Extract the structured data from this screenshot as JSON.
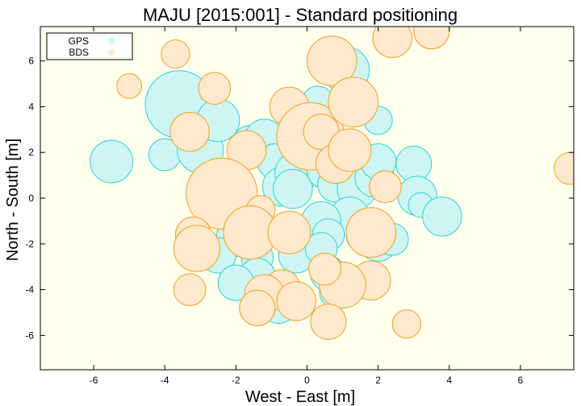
{
  "chart_data": {
    "type": "scatter",
    "title": "MAJU [2015:001] - Standard positioning",
    "xlabel": "West - East [m]",
    "ylabel": "North - South [m]",
    "xlim": [
      -7.5,
      7.5
    ],
    "ylim": [
      -7.5,
      7.5
    ],
    "xticks": [
      -6,
      -4,
      -2,
      0,
      2,
      4,
      6
    ],
    "yticks": [
      -6,
      -4,
      -2,
      0,
      2,
      4,
      6
    ],
    "grid": false,
    "legend_position": "top-left",
    "colors": {
      "background": "#ffffee",
      "gps_fill": "#cef5f3",
      "gps_stroke": "#2fd0d6",
      "bds_fill": "#ffe9cc",
      "bds_stroke": "#f0a020"
    },
    "series": [
      {
        "name": "GPS",
        "points": [
          {
            "x": -5.5,
            "y": 1.6,
            "r": 0.6
          },
          {
            "x": -4.0,
            "y": 1.9,
            "r": 0.45
          },
          {
            "x": -3.6,
            "y": 4.1,
            "r": 0.95
          },
          {
            "x": -3.0,
            "y": 2.1,
            "r": 0.65
          },
          {
            "x": -2.5,
            "y": 3.4,
            "r": 0.6
          },
          {
            "x": -1.6,
            "y": 2.4,
            "r": 0.5
          },
          {
            "x": -1.2,
            "y": 2.6,
            "r": 0.55
          },
          {
            "x": -0.9,
            "y": 1.6,
            "r": 0.5
          },
          {
            "x": -0.7,
            "y": 0.5,
            "r": 0.55
          },
          {
            "x": -0.3,
            "y": 1.1,
            "r": 0.6
          },
          {
            "x": -0.4,
            "y": 0.4,
            "r": 0.55
          },
          {
            "x": 0.3,
            "y": 4.2,
            "r": 0.45
          },
          {
            "x": 1.1,
            "y": 5.6,
            "r": 0.65
          },
          {
            "x": 0.5,
            "y": 1.2,
            "r": 0.5
          },
          {
            "x": 0.8,
            "y": 0.6,
            "r": 0.5
          },
          {
            "x": 1.4,
            "y": 0.4,
            "r": 0.55
          },
          {
            "x": 1.2,
            "y": -0.8,
            "r": 0.55
          },
          {
            "x": 0.4,
            "y": -1.0,
            "r": 0.55
          },
          {
            "x": -0.3,
            "y": -2.5,
            "r": 0.5
          },
          {
            "x": 0.6,
            "y": -1.6,
            "r": 0.45
          },
          {
            "x": 0.4,
            "y": -2.2,
            "r": 0.45
          },
          {
            "x": 1.6,
            "y": -1.6,
            "r": 0.5
          },
          {
            "x": 2.0,
            "y": -1.9,
            "r": 0.55
          },
          {
            "x": 2.4,
            "y": -1.8,
            "r": 0.45
          },
          {
            "x": 1.9,
            "y": 0.9,
            "r": 0.55
          },
          {
            "x": 2.0,
            "y": 1.6,
            "r": 0.5
          },
          {
            "x": 2.0,
            "y": 3.4,
            "r": 0.4
          },
          {
            "x": 3.0,
            "y": 1.5,
            "r": 0.5
          },
          {
            "x": 3.1,
            "y": 0.1,
            "r": 0.55
          },
          {
            "x": 3.2,
            "y": -0.3,
            "r": 0.35
          },
          {
            "x": 3.8,
            "y": -0.8,
            "r": 0.55
          },
          {
            "x": -2.0,
            "y": -1.7,
            "r": 0.55
          },
          {
            "x": -2.5,
            "y": -2.5,
            "r": 0.5
          },
          {
            "x": -1.4,
            "y": -2.6,
            "r": 0.45
          },
          {
            "x": -1.4,
            "y": -3.4,
            "r": 0.5
          },
          {
            "x": -2.0,
            "y": -3.7,
            "r": 0.5
          },
          {
            "x": -1.1,
            "y": -4.2,
            "r": 0.45
          },
          {
            "x": -0.8,
            "y": -4.7,
            "r": 0.5
          },
          {
            "x": 0.6,
            "y": -3.3,
            "r": 0.5
          },
          {
            "x": 0.8,
            "y": -4.1,
            "r": 0.45
          }
        ]
      },
      {
        "name": "BDS",
        "points": [
          {
            "x": -3.7,
            "y": 6.3,
            "r": 0.4
          },
          {
            "x": -5.0,
            "y": 4.9,
            "r": 0.35
          },
          {
            "x": -2.6,
            "y": 4.8,
            "r": 0.45
          },
          {
            "x": -3.3,
            "y": 2.9,
            "r": 0.55
          },
          {
            "x": -1.7,
            "y": 2.1,
            "r": 0.55
          },
          {
            "x": -2.4,
            "y": 0.2,
            "r": 1.0
          },
          {
            "x": -0.5,
            "y": 4.0,
            "r": 0.55
          },
          {
            "x": 0.1,
            "y": 2.7,
            "r": 0.95
          },
          {
            "x": 0.7,
            "y": 6.0,
            "r": 0.7
          },
          {
            "x": 1.3,
            "y": 4.2,
            "r": 0.7
          },
          {
            "x": 0.4,
            "y": 2.9,
            "r": 0.5
          },
          {
            "x": 0.8,
            "y": 1.5,
            "r": 0.55
          },
          {
            "x": 1.2,
            "y": 2.1,
            "r": 0.6
          },
          {
            "x": 2.2,
            "y": 0.5,
            "r": 0.45
          },
          {
            "x": 2.4,
            "y": 7.0,
            "r": 0.55
          },
          {
            "x": 3.5,
            "y": 7.3,
            "r": 0.5
          },
          {
            "x": 7.4,
            "y": 1.3,
            "r": 0.45
          },
          {
            "x": -1.3,
            "y": -0.5,
            "r": 0.4
          },
          {
            "x": -3.2,
            "y": -1.6,
            "r": 0.5
          },
          {
            "x": -3.1,
            "y": -2.2,
            "r": 0.65
          },
          {
            "x": -3.3,
            "y": -4.0,
            "r": 0.45
          },
          {
            "x": -1.6,
            "y": -1.5,
            "r": 0.75
          },
          {
            "x": -0.5,
            "y": -1.5,
            "r": 0.6
          },
          {
            "x": 1.8,
            "y": -1.5,
            "r": 0.7
          },
          {
            "x": 1.8,
            "y": -3.6,
            "r": 0.55
          },
          {
            "x": 1.0,
            "y": -3.8,
            "r": 0.65
          },
          {
            "x": 0.5,
            "y": -3.1,
            "r": 0.45
          },
          {
            "x": -0.7,
            "y": -3.9,
            "r": 0.5
          },
          {
            "x": -1.2,
            "y": -4.2,
            "r": 0.55
          },
          {
            "x": -1.4,
            "y": -4.8,
            "r": 0.5
          },
          {
            "x": -0.3,
            "y": -4.5,
            "r": 0.55
          },
          {
            "x": 0.6,
            "y": -5.4,
            "r": 0.5
          },
          {
            "x": 2.8,
            "y": -5.5,
            "r": 0.4
          }
        ]
      }
    ]
  }
}
